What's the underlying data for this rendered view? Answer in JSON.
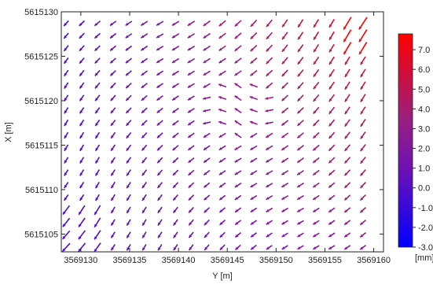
{
  "chart_data": {
    "type": "vector-field",
    "title": "",
    "xlabel": "Y [m]",
    "ylabel": "X [m]",
    "xlim": [
      3569128,
      3569161
    ],
    "ylim": [
      5615103,
      5615130
    ],
    "x_ticks": [
      3569130,
      3569135,
      3569140,
      3569145,
      3569150,
      3569155,
      3569160
    ],
    "x_tick_labels": [
      "3569130",
      "3569135",
      "3569140",
      "3569145",
      "3569150",
      "3569155",
      "3569160"
    ],
    "y_ticks": [
      5615105,
      5615110,
      5615115,
      5615120,
      5615125,
      5615130
    ],
    "y_tick_labels": [
      "5615105",
      "5615110",
      "5615115",
      "5615120",
      "5615125",
      "5615130"
    ],
    "grid": false,
    "arrow_direction_mostly": "down-left",
    "arrow_grid": {
      "x_start": 3569128.5,
      "x_step": 1.6,
      "x_count": 20,
      "y_start": 5615103.5,
      "y_step": 1.4,
      "y_count": 19
    },
    "colorbar": {
      "unit": "[mm]",
      "min": -3.0,
      "max": 7.8,
      "ticks": [
        7.0,
        6.0,
        5.0,
        4.0,
        3.0,
        2.0,
        1.0,
        0.0,
        -1.0,
        -2.0,
        -3.0
      ],
      "tick_labels": [
        "7.0",
        "6.0",
        "5.0",
        "4.0",
        "3.0",
        "2.0",
        "1.0",
        "0.0",
        "-1.0",
        "-2.0",
        "-3.0"
      ],
      "colors": [
        "#0000ff",
        "#7a1fa2",
        "#ff0000"
      ]
    }
  }
}
